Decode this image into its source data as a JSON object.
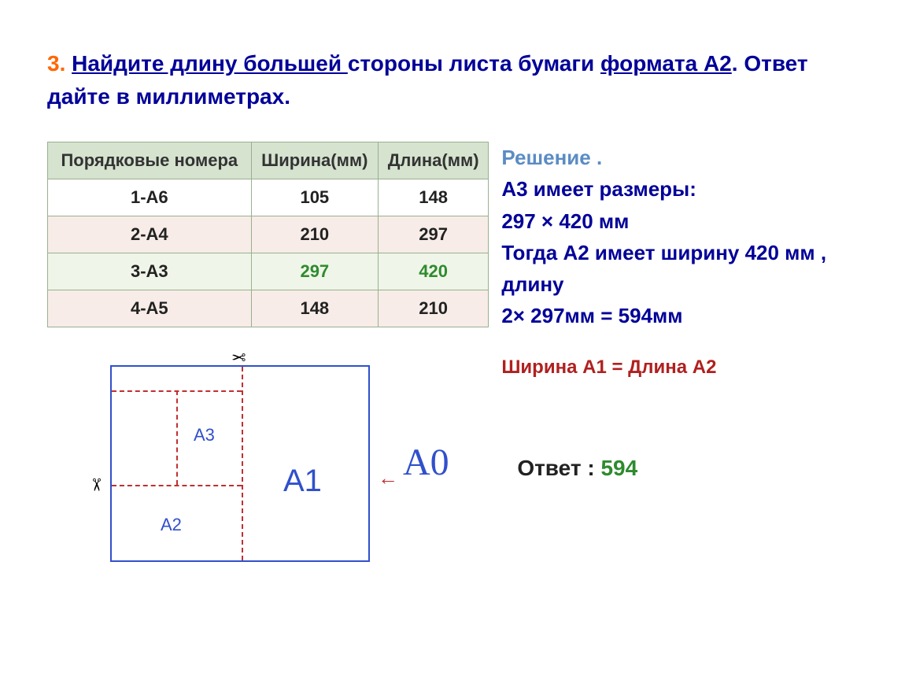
{
  "question": {
    "number": "3.",
    "part1": "Найдите длину большей ",
    "part2": "стороны листа бумаги ",
    "part3": "формата А2",
    "part4": ". Ответ дайте в миллиметрах."
  },
  "table": {
    "headers": [
      "Порядковые номера",
      "Ширина(мм)",
      "Длина(мм)"
    ],
    "rows": [
      [
        "1-А6",
        "105",
        "148"
      ],
      [
        "2-А4",
        "210",
        "297"
      ],
      [
        "3-А3",
        "297",
        "420"
      ],
      [
        "4-А5",
        "148",
        "210"
      ]
    ],
    "highlight_row_index": 2,
    "header_bg": "#d5e3cf",
    "row_alt_bg_1": "#f7ece7",
    "row_alt_bg_2": "#eff5e8",
    "border_color": "#99b090",
    "highlight_color": "#2e8b2e"
  },
  "solution": {
    "title": "Решение .",
    "lines": [
      "А3 имеет размеры:",
      "297 × 420 мм",
      "Тогда А2 имеет ширину 420 мм , длину",
      "2× 297мм = 594мм"
    ],
    "note": "Ширина А1 = Длина А2",
    "title_color": "#5b8cc4",
    "body_color": "#000099",
    "note_color": "#b02020"
  },
  "answer": {
    "label": "Ответ : ",
    "value": "594",
    "value_color": "#2e8b2e"
  },
  "diagram": {
    "labels": {
      "a3": "А3",
      "a2": "А2",
      "a1": "А1",
      "a0": "А0"
    },
    "scissor": "✂",
    "arrow": "←",
    "box_border_color": "#3050cc",
    "dash_color": "#c03030",
    "label_color": "#3050cc",
    "a1_fontsize": 40,
    "a0_fontsize": 48,
    "small_label_fontsize": 22
  },
  "colors": {
    "question_number": "#ff6600",
    "question_text": "#000099",
    "background": "#ffffff"
  }
}
